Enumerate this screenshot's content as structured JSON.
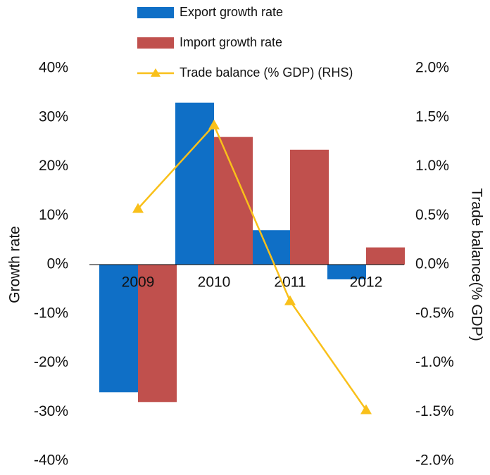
{
  "chart_data": {
    "type": "bar_line",
    "categories": [
      "2009",
      "2010",
      "2011",
      "2012"
    ],
    "series": [
      {
        "name": "Export growth rate",
        "color": "#0f6fc6",
        "type": "bar",
        "values": [
          -26,
          33,
          7,
          -3
        ]
      },
      {
        "name": "Import growth rate",
        "color": "#c0504d",
        "type": "bar",
        "values": [
          -28,
          26,
          23.4,
          3.5
        ]
      },
      {
        "name": "Trade balance (% GDP) (RHS)",
        "color": "#f9c01a",
        "type": "line",
        "axis": "y2",
        "values": [
          0.57,
          1.42,
          -0.37,
          -1.48
        ]
      }
    ],
    "ylabel": "Growth rate",
    "y2label": "Trade balance(% GDP)",
    "ylim": [
      -40,
      40
    ],
    "yticks": [
      {
        "value": -40,
        "label": "-40%"
      },
      {
        "value": -30,
        "label": "-30%"
      },
      {
        "value": -20,
        "label": "-20%"
      },
      {
        "value": -10,
        "label": "-10%"
      },
      {
        "value": 0,
        "label": "0%"
      },
      {
        "value": 10,
        "label": "10%"
      },
      {
        "value": 20,
        "label": "20%"
      },
      {
        "value": 30,
        "label": "30%"
      },
      {
        "value": 40,
        "label": "40%"
      }
    ],
    "y2lim": [
      -2,
      2
    ],
    "y2ticks": [
      {
        "value": -2,
        "label": "-2.0%"
      },
      {
        "value": -1.5,
        "label": "-1.5%"
      },
      {
        "value": -1,
        "label": "-1.0%"
      },
      {
        "value": -0.5,
        "label": "-0.5%"
      },
      {
        "value": 0,
        "label": "0.0%"
      },
      {
        "value": 0.5,
        "label": "0.5%"
      },
      {
        "value": 1,
        "label": "1.0%"
      },
      {
        "value": 1.5,
        "label": "1.5%"
      },
      {
        "value": 2,
        "label": "2.0%"
      }
    ],
    "legend": "top"
  }
}
